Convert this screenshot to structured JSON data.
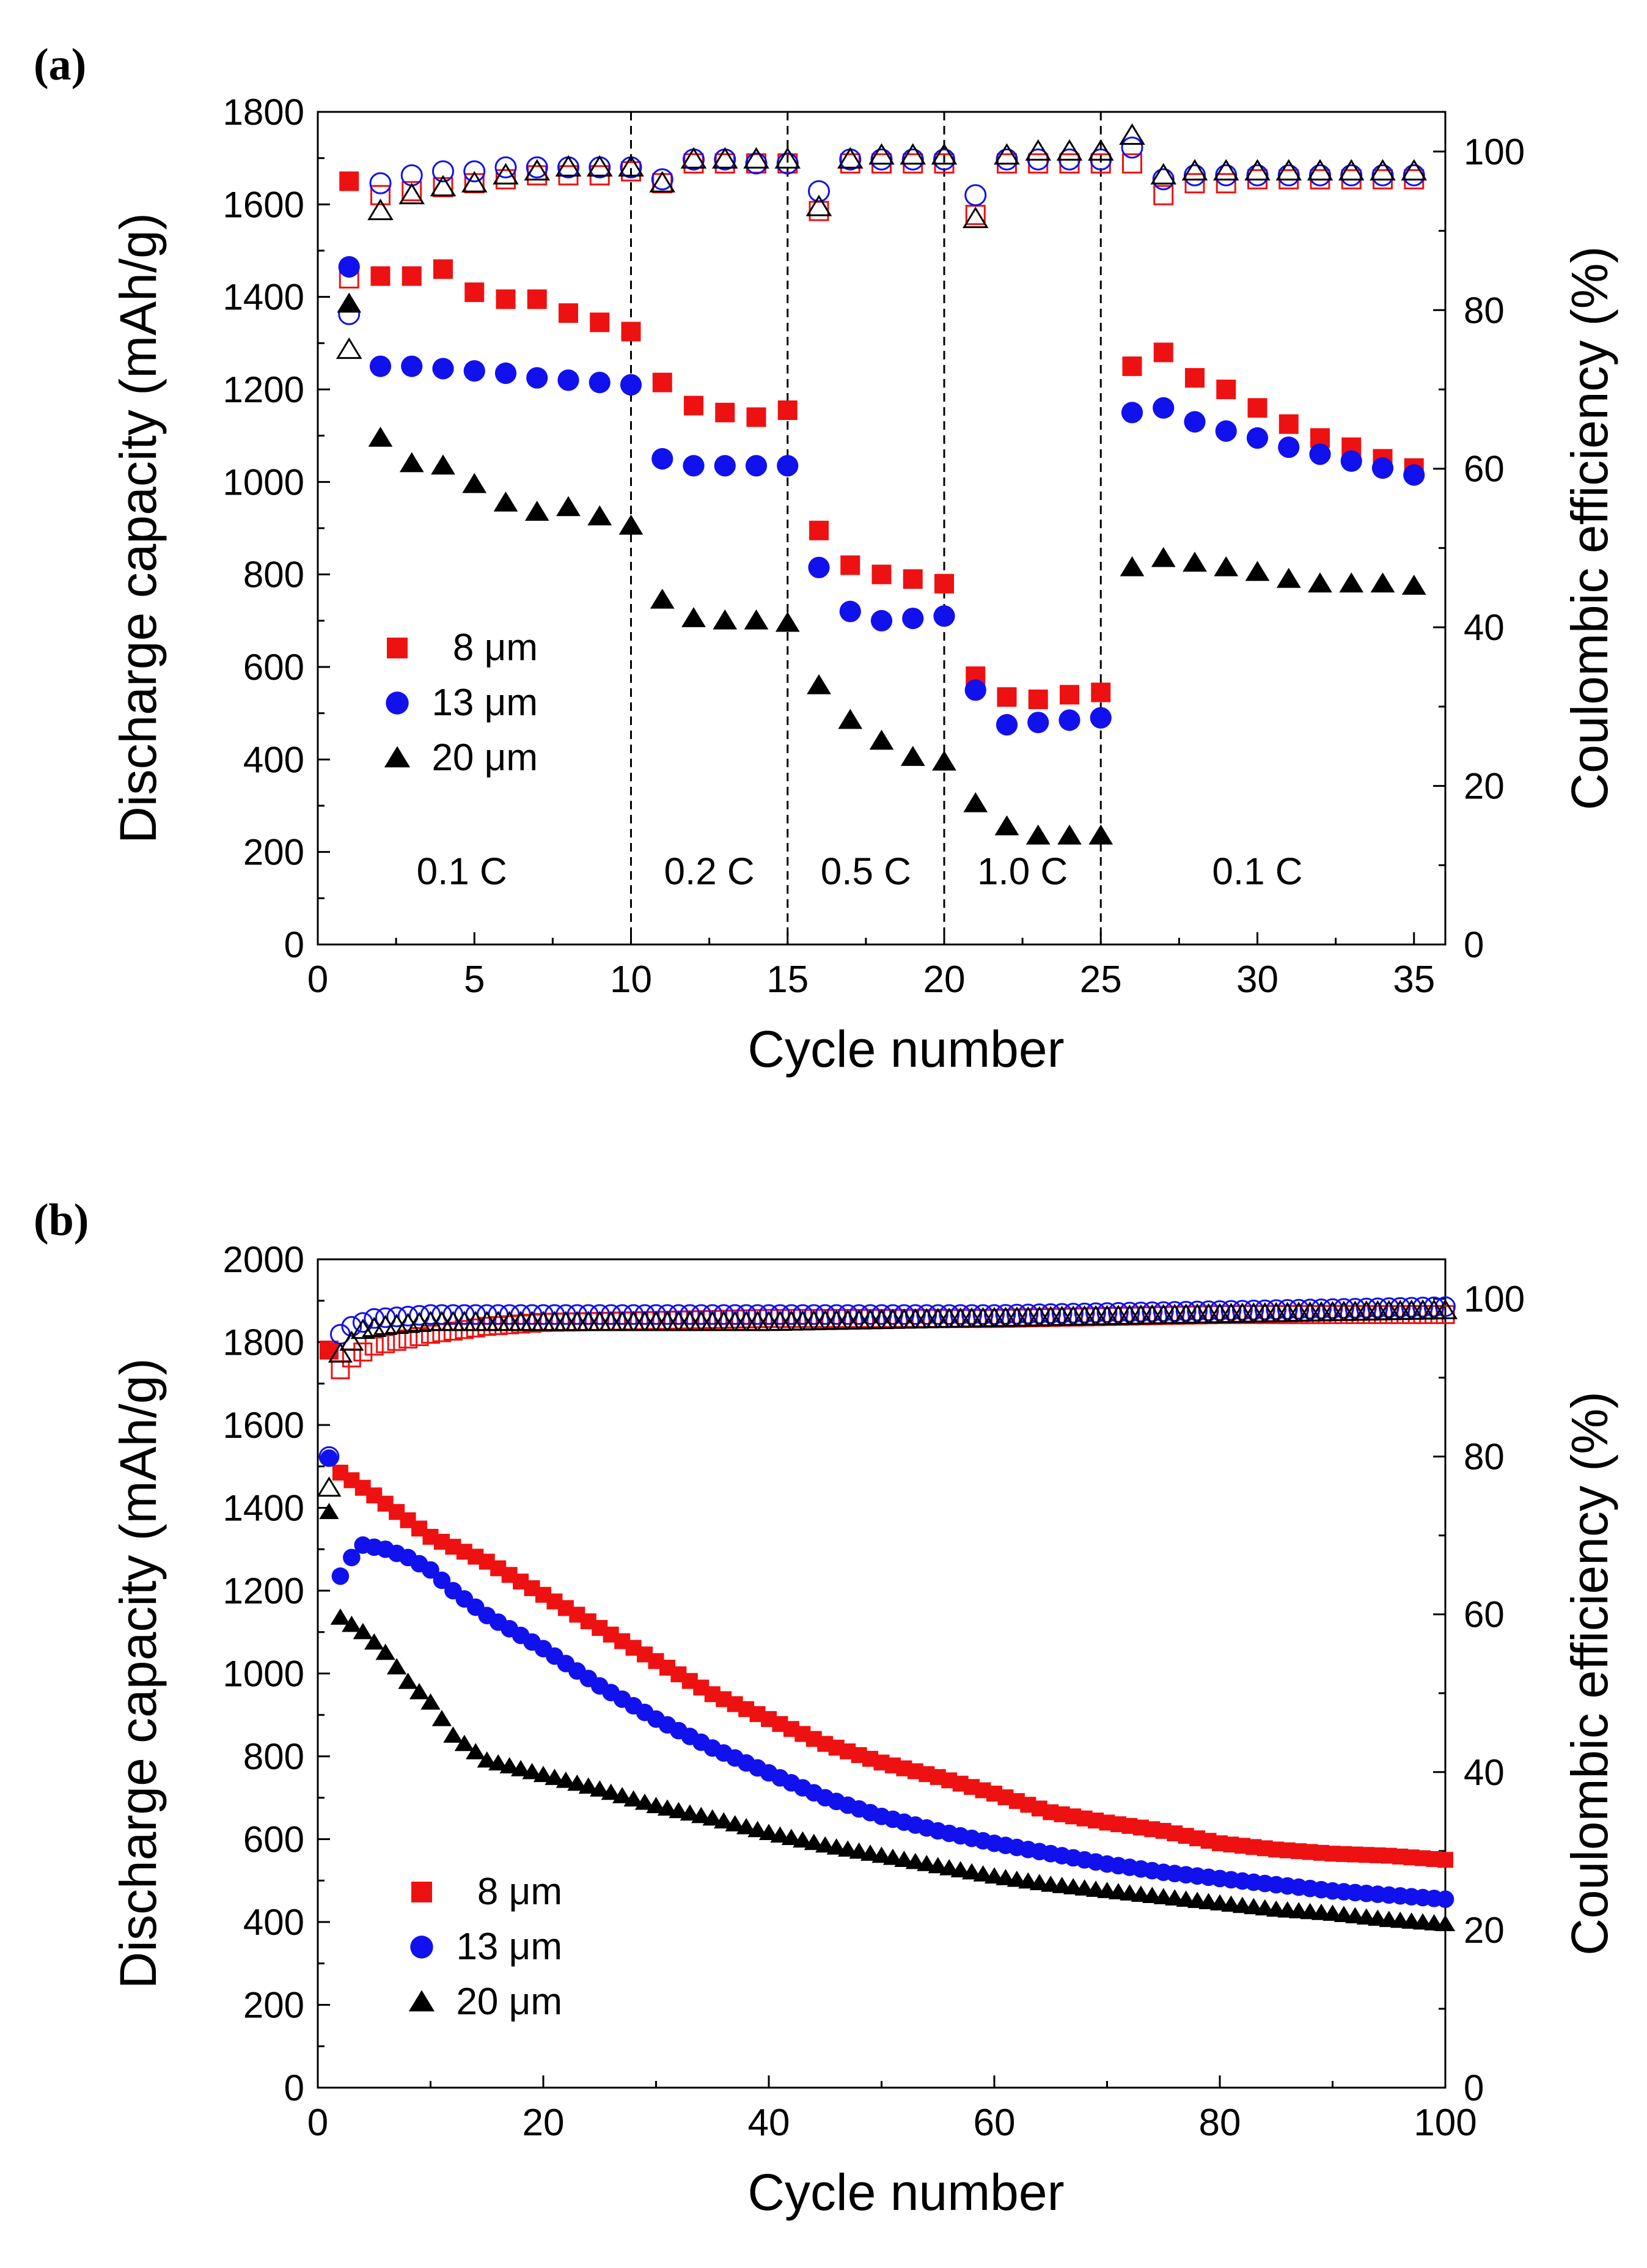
{
  "colors": {
    "s8": "#ee1111",
    "s13": "#1111ee",
    "s20": "#000000",
    "axis": "#000000"
  },
  "chart_data": [
    {
      "panel": "(a)",
      "type": "scatter",
      "xlabel": "Cycle number",
      "ylabel": "Discharge capacity (mAh/g)",
      "y2label": "Coulombic efficiency (%)",
      "xlim": [
        0,
        36
      ],
      "ylim": [
        0,
        1800
      ],
      "y2lim": [
        0,
        105
      ],
      "xticks": [
        0,
        5,
        10,
        15,
        20,
        25,
        30,
        35
      ],
      "yticks": [
        0,
        200,
        400,
        600,
        800,
        1000,
        1200,
        1400,
        1600,
        1800
      ],
      "y2ticks": [
        0,
        20,
        40,
        60,
        80,
        100
      ],
      "dividers": [
        10,
        15,
        20,
        25
      ],
      "rate_labels": [
        {
          "text": "0.1 C",
          "x": 4.6
        },
        {
          "text": "0.2 C",
          "x": 12.5
        },
        {
          "text": "0.5 C",
          "x": 17.5
        },
        {
          "text": "1.0 C",
          "x": 22.5
        },
        {
          "text": "0.1 C",
          "x": 30.0
        }
      ],
      "rate_label_y": 130,
      "legend": {
        "position": "lower-left"
      },
      "series": [
        {
          "name": "8 μm",
          "key": "s8",
          "marker": "square",
          "x": [
            1,
            2,
            3,
            4,
            5,
            6,
            7,
            8,
            9,
            10,
            11,
            12,
            13,
            14,
            15,
            16,
            17,
            18,
            19,
            20,
            21,
            22,
            23,
            24,
            25,
            26,
            27,
            28,
            29,
            30,
            31,
            32,
            33,
            34,
            35
          ],
          "capacity": [
            1650,
            1445,
            1445,
            1460,
            1410,
            1395,
            1395,
            1365,
            1345,
            1325,
            1215,
            1165,
            1150,
            1140,
            1155,
            895,
            820,
            800,
            790,
            780,
            580,
            535,
            530,
            540,
            545,
            1250,
            1280,
            1225,
            1200,
            1160,
            1125,
            1095,
            1075,
            1050,
            1030
          ],
          "efficiency": [
            84,
            94.5,
            95,
            95.5,
            96,
            96.5,
            97,
            97,
            97,
            97.5,
            96,
            98.5,
            98.5,
            98.5,
            98.5,
            92.5,
            98.5,
            98.5,
            98.5,
            98.5,
            92,
            98.5,
            98.5,
            98.5,
            98.5,
            98.5,
            94.5,
            96,
            96,
            96.5,
            96.5,
            96.5,
            96.5,
            96.5,
            96.5
          ]
        },
        {
          "name": "13 μm",
          "key": "s13",
          "marker": "circle",
          "x": [
            1,
            2,
            3,
            4,
            5,
            6,
            7,
            8,
            9,
            10,
            11,
            12,
            13,
            14,
            15,
            16,
            17,
            18,
            19,
            20,
            21,
            22,
            23,
            24,
            25,
            26,
            27,
            28,
            29,
            30,
            31,
            32,
            33,
            34,
            35
          ],
          "capacity": [
            1465,
            1250,
            1250,
            1245,
            1240,
            1235,
            1225,
            1220,
            1215,
            1210,
            1050,
            1035,
            1035,
            1035,
            1035,
            815,
            720,
            700,
            705,
            710,
            550,
            475,
            480,
            485,
            490,
            1150,
            1160,
            1130,
            1110,
            1095,
            1075,
            1060,
            1045,
            1030,
            1015
          ],
          "efficiency": [
            79.5,
            96,
            97,
            97.5,
            97.5,
            98,
            98,
            98,
            98,
            98,
            96.5,
            99,
            99,
            98.5,
            98.5,
            95,
            99,
            99,
            99,
            99,
            94.5,
            99,
            99,
            99,
            99,
            100.5,
            96.5,
            97,
            97,
            97,
            97,
            97,
            97,
            97,
            97
          ]
        },
        {
          "name": "20 μm",
          "key": "s20",
          "marker": "triangle",
          "x": [
            1,
            2,
            3,
            4,
            5,
            6,
            7,
            8,
            9,
            10,
            11,
            12,
            13,
            14,
            15,
            16,
            17,
            18,
            19,
            20,
            21,
            22,
            23,
            24,
            25,
            26,
            27,
            28,
            29,
            30,
            31,
            32,
            33,
            34,
            35
          ],
          "capacity": [
            1385,
            1095,
            1040,
            1035,
            995,
            955,
            935,
            945,
            925,
            905,
            745,
            705,
            700,
            700,
            695,
            560,
            485,
            440,
            405,
            395,
            305,
            255,
            235,
            235,
            235,
            815,
            835,
            825,
            815,
            805,
            790,
            780,
            780,
            780,
            775
          ],
          "efficiency": [
            75,
            92.5,
            94.5,
            95.5,
            96,
            97,
            97.5,
            98,
            98,
            98,
            96,
            99,
            99,
            99,
            99,
            93,
            99,
            99.5,
            99.5,
            99.5,
            91.5,
            99.5,
            100,
            100,
            100,
            102,
            97,
            97.5,
            97.5,
            97.5,
            97.5,
            97.5,
            97.5,
            97.5,
            97.5
          ]
        }
      ]
    },
    {
      "panel": "(b)",
      "type": "scatter",
      "xlabel": "Cycle number",
      "ylabel": "Discharge capacity (mAh/g)",
      "y2label": "Coulombic efficiency (%)",
      "xlim": [
        0,
        100
      ],
      "ylim": [
        0,
        2000
      ],
      "y2lim": [
        0,
        105
      ],
      "xticks": [
        0,
        20,
        40,
        60,
        80,
        100
      ],
      "yticks": [
        0,
        200,
        400,
        600,
        800,
        1000,
        1200,
        1400,
        1600,
        1800,
        2000
      ],
      "y2ticks": [
        0,
        20,
        40,
        60,
        80,
        100
      ],
      "legend": {
        "position": "lower-left"
      },
      "series": [
        {
          "name": "8 μm",
          "key": "s8",
          "marker": "square",
          "capacity_points": [
            [
              1,
              1780
            ],
            [
              2,
              1485
            ],
            [
              5,
              1430
            ],
            [
              10,
              1330
            ],
            [
              15,
              1270
            ],
            [
              20,
              1190
            ],
            [
              25,
              1110
            ],
            [
              30,
              1030
            ],
            [
              35,
              950
            ],
            [
              40,
              890
            ],
            [
              45,
              830
            ],
            [
              50,
              785
            ],
            [
              55,
              750
            ],
            [
              60,
              710
            ],
            [
              65,
              665
            ],
            [
              70,
              640
            ],
            [
              75,
              620
            ],
            [
              80,
              590
            ],
            [
              85,
              575
            ],
            [
              90,
              565
            ],
            [
              95,
              560
            ],
            [
              100,
              550
            ]
          ],
          "efficiency_points": [
            [
              1,
              93.5
            ],
            [
              2,
              91
            ],
            [
              3,
              92.5
            ],
            [
              5,
              94
            ],
            [
              10,
              95.5
            ],
            [
              15,
              96.5
            ],
            [
              20,
              97
            ],
            [
              40,
              97.5
            ],
            [
              60,
              97.5
            ],
            [
              80,
              98
            ],
            [
              100,
              98
            ]
          ]
        },
        {
          "name": "13 μm",
          "key": "s13",
          "marker": "circle",
          "capacity_points": [
            [
              1,
              1520
            ],
            [
              2,
              1235
            ],
            [
              3,
              1280
            ],
            [
              4,
              1310
            ],
            [
              6,
              1300
            ],
            [
              8,
              1280
            ],
            [
              10,
              1250
            ],
            [
              12,
              1200
            ],
            [
              15,
              1140
            ],
            [
              20,
              1060
            ],
            [
              25,
              970
            ],
            [
              30,
              890
            ],
            [
              35,
              820
            ],
            [
              40,
              760
            ],
            [
              45,
              700
            ],
            [
              50,
              655
            ],
            [
              55,
              620
            ],
            [
              60,
              590
            ],
            [
              65,
              565
            ],
            [
              70,
              540
            ],
            [
              75,
              520
            ],
            [
              80,
              505
            ],
            [
              85,
              490
            ],
            [
              90,
              475
            ],
            [
              95,
              465
            ],
            [
              100,
              455
            ]
          ],
          "efficiency_points": [
            [
              1,
              80
            ],
            [
              2,
              95.5
            ],
            [
              3,
              96.5
            ],
            [
              5,
              97.5
            ],
            [
              10,
              98
            ],
            [
              20,
              98
            ],
            [
              40,
              98
            ],
            [
              60,
              98
            ],
            [
              80,
              98.5
            ],
            [
              100,
              99
            ]
          ]
        },
        {
          "name": "20 μm",
          "key": "s20",
          "marker": "triangle",
          "capacity_points": [
            [
              1,
              1390
            ],
            [
              2,
              1135
            ],
            [
              4,
              1100
            ],
            [
              6,
              1050
            ],
            [
              8,
              980
            ],
            [
              10,
              930
            ],
            [
              12,
              850
            ],
            [
              15,
              790
            ],
            [
              20,
              755
            ],
            [
              25,
              720
            ],
            [
              30,
              680
            ],
            [
              35,
              650
            ],
            [
              40,
              615
            ],
            [
              45,
              585
            ],
            [
              50,
              560
            ],
            [
              55,
              535
            ],
            [
              60,
              510
            ],
            [
              65,
              490
            ],
            [
              70,
              475
            ],
            [
              75,
              460
            ],
            [
              80,
              445
            ],
            [
              85,
              430
            ],
            [
              90,
              420
            ],
            [
              95,
              405
            ],
            [
              100,
              395
            ]
          ],
          "efficiency_points": [
            [
              1,
              76
            ],
            [
              2,
              93
            ],
            [
              4,
              96
            ],
            [
              6,
              96.5
            ],
            [
              10,
              97
            ],
            [
              20,
              97
            ],
            [
              40,
              97
            ],
            [
              60,
              97.5
            ],
            [
              80,
              98
            ],
            [
              100,
              98.5
            ]
          ]
        }
      ]
    }
  ]
}
